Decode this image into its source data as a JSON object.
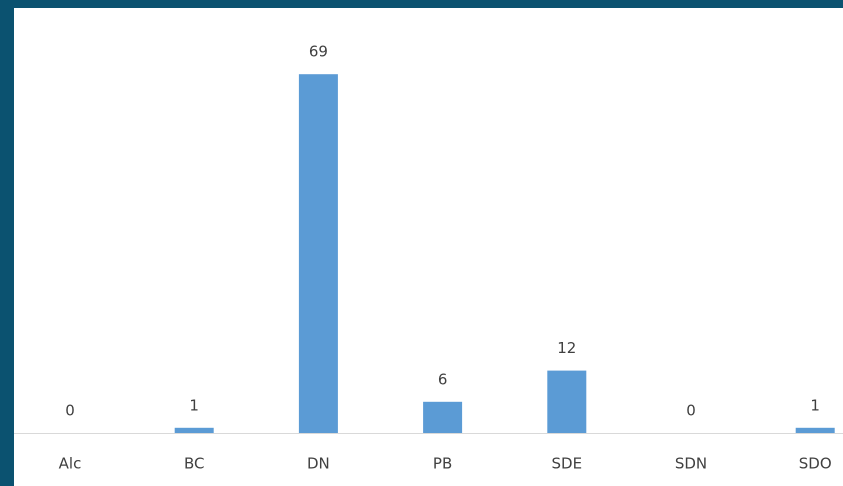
{
  "chart_data": {
    "type": "bar",
    "categories": [
      "Alc",
      "BC",
      "DN",
      "PB",
      "SDE",
      "SDN",
      "SDO"
    ],
    "values": [
      0,
      1,
      69,
      6,
      12,
      0,
      1
    ],
    "color": "#5b9bd5"
  }
}
